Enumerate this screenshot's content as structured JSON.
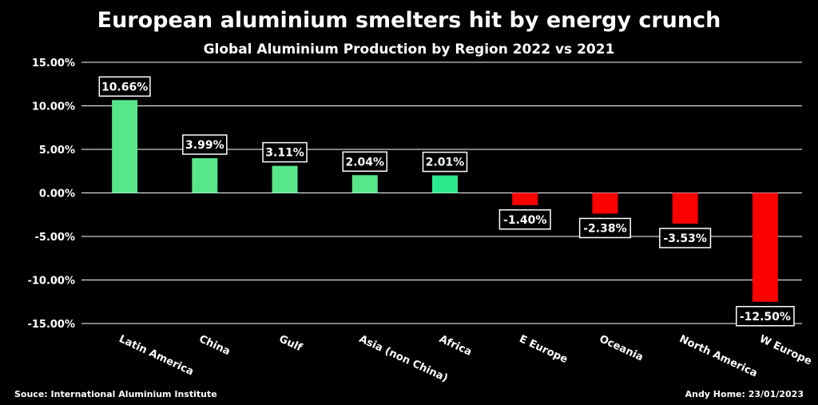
{
  "header": {
    "title": "European aluminium smelters hit by energy crunch",
    "subtitle": "Global Aluminium Production by Region 2022 vs 2021"
  },
  "footer": {
    "source": "Souce: International Aluminium Institute",
    "credit": "Andy Home: 23/01/2023"
  },
  "colors": {
    "background": "#000000",
    "positive": "#57E68A",
    "positive_alt": "#2BEA8E",
    "negative": "#FF0000",
    "label_box": "#000000",
    "grid": "#FFFFFF"
  },
  "chart_data": {
    "type": "bar",
    "title": "European aluminium smelters hit by energy crunch",
    "subtitle": "Global Aluminium Production by Region 2022 vs 2021",
    "categories": [
      "Latin America",
      "China",
      "Gulf",
      "Asia (non China)",
      "Africa",
      "E Europe",
      "Oceania",
      "North America",
      "W Europe"
    ],
    "values": [
      10.66,
      3.99,
      3.11,
      2.04,
      2.01,
      -1.4,
      -2.38,
      -3.53,
      -12.5
    ],
    "data_labels": [
      "10.66%",
      "3.99%",
      "3.11%",
      "2.04%",
      "2.01%",
      "-1.40%",
      "-2.38%",
      "-3.53%",
      "-12.50%"
    ],
    "ylim": [
      -15,
      15
    ],
    "y_ticks": [
      15,
      10,
      5,
      0,
      -5,
      -10,
      -15
    ],
    "y_tick_labels": [
      "15.00%",
      "10.00%",
      "5.00%",
      "0.00%",
      "-5.00%",
      "-10.00%",
      "-15.00%"
    ],
    "grid": true,
    "xlabel": "",
    "ylabel": ""
  }
}
